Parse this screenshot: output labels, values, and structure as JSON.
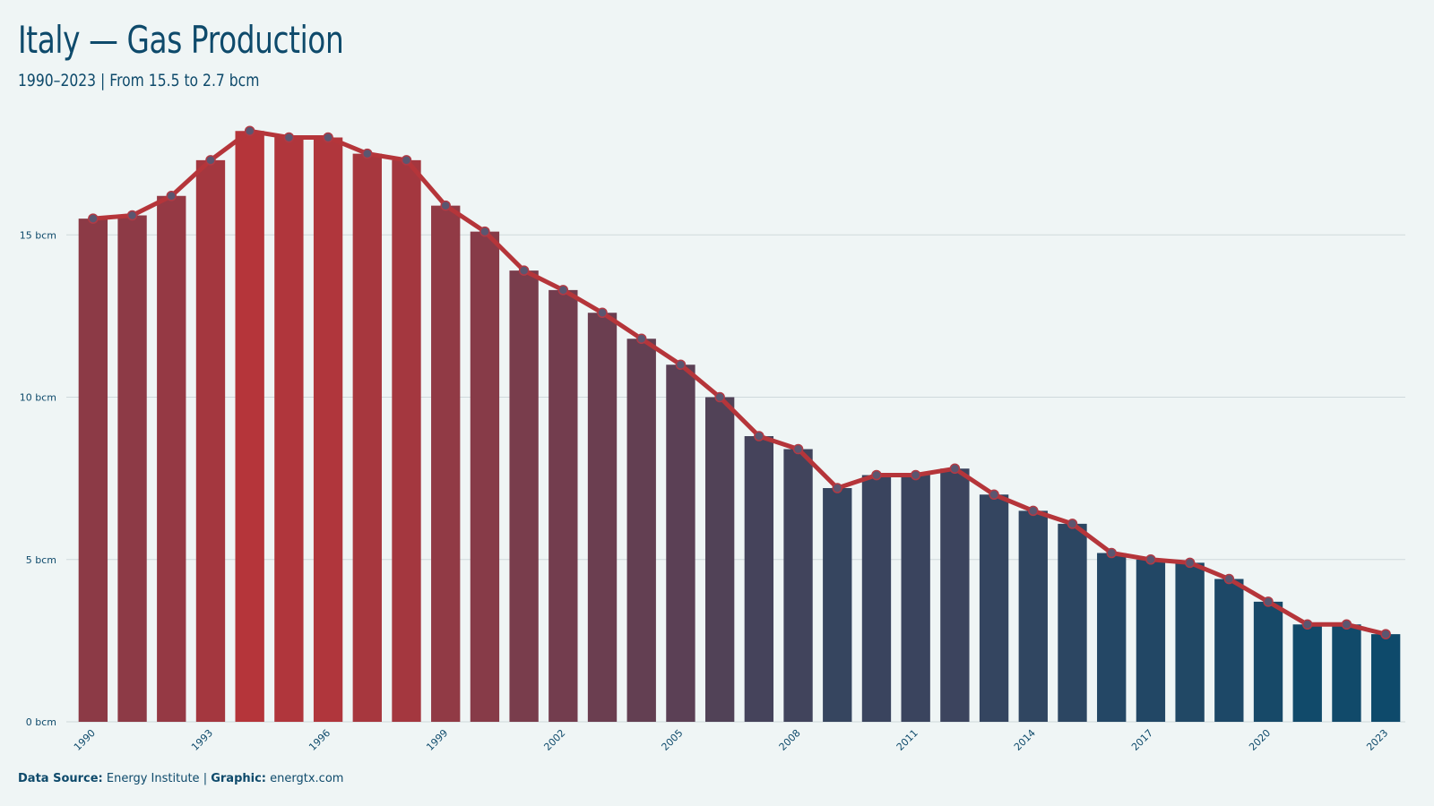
{
  "header": {
    "title": "Italy — Gas Production",
    "subtitle": "1990–2023 | From 15.5 to 2.7 bcm"
  },
  "caption": {
    "source_label": "Data Source:",
    "source_value": "Energy Institute",
    "separator": "|",
    "graphic_label": "Graphic:",
    "graphic_value": "energtx.com"
  },
  "colors": {
    "background": "#eff5f5",
    "text": "#0e4a6b",
    "line": "#b5353a",
    "bar_high": "#b5353a",
    "bar_low": "#0e4a6b",
    "marker": "#5b5670",
    "grid": "#cfd9dc"
  },
  "chart_data": {
    "type": "bar",
    "title": "Italy — Gas Production",
    "subtitle": "1990–2023 | From 15.5 to 2.7 bcm",
    "categories": [
      "1990",
      "1991",
      "1992",
      "1993",
      "1994",
      "1995",
      "1996",
      "1997",
      "1998",
      "1999",
      "2000",
      "2001",
      "2002",
      "2003",
      "2004",
      "2005",
      "2006",
      "2007",
      "2008",
      "2009",
      "2010",
      "2011",
      "2012",
      "2013",
      "2014",
      "2015",
      "2016",
      "2017",
      "2018",
      "2019",
      "2020",
      "2021",
      "2022",
      "2023"
    ],
    "values": [
      15.5,
      15.6,
      16.2,
      17.3,
      18.2,
      18.0,
      18.0,
      17.5,
      17.3,
      15.9,
      15.1,
      13.9,
      13.3,
      12.6,
      11.8,
      11.0,
      10.0,
      8.8,
      8.4,
      7.2,
      7.6,
      7.6,
      7.8,
      7.0,
      6.5,
      6.1,
      5.2,
      5.0,
      4.9,
      4.4,
      3.7,
      3.0,
      3.0,
      2.7
    ],
    "overlay": "line with markers",
    "x_tick_labels": [
      "1990",
      "1993",
      "1996",
      "1999",
      "2002",
      "2005",
      "2008",
      "2011",
      "2014",
      "2017",
      "2020",
      "2023"
    ],
    "y_ticks": [
      0,
      5,
      10,
      15
    ],
    "y_tick_labels": [
      "0 bcm",
      "5 bcm",
      "10 bcm",
      "15 bcm"
    ],
    "ylim": [
      0,
      19.2
    ],
    "grid": "horizontal",
    "legend": "none"
  }
}
